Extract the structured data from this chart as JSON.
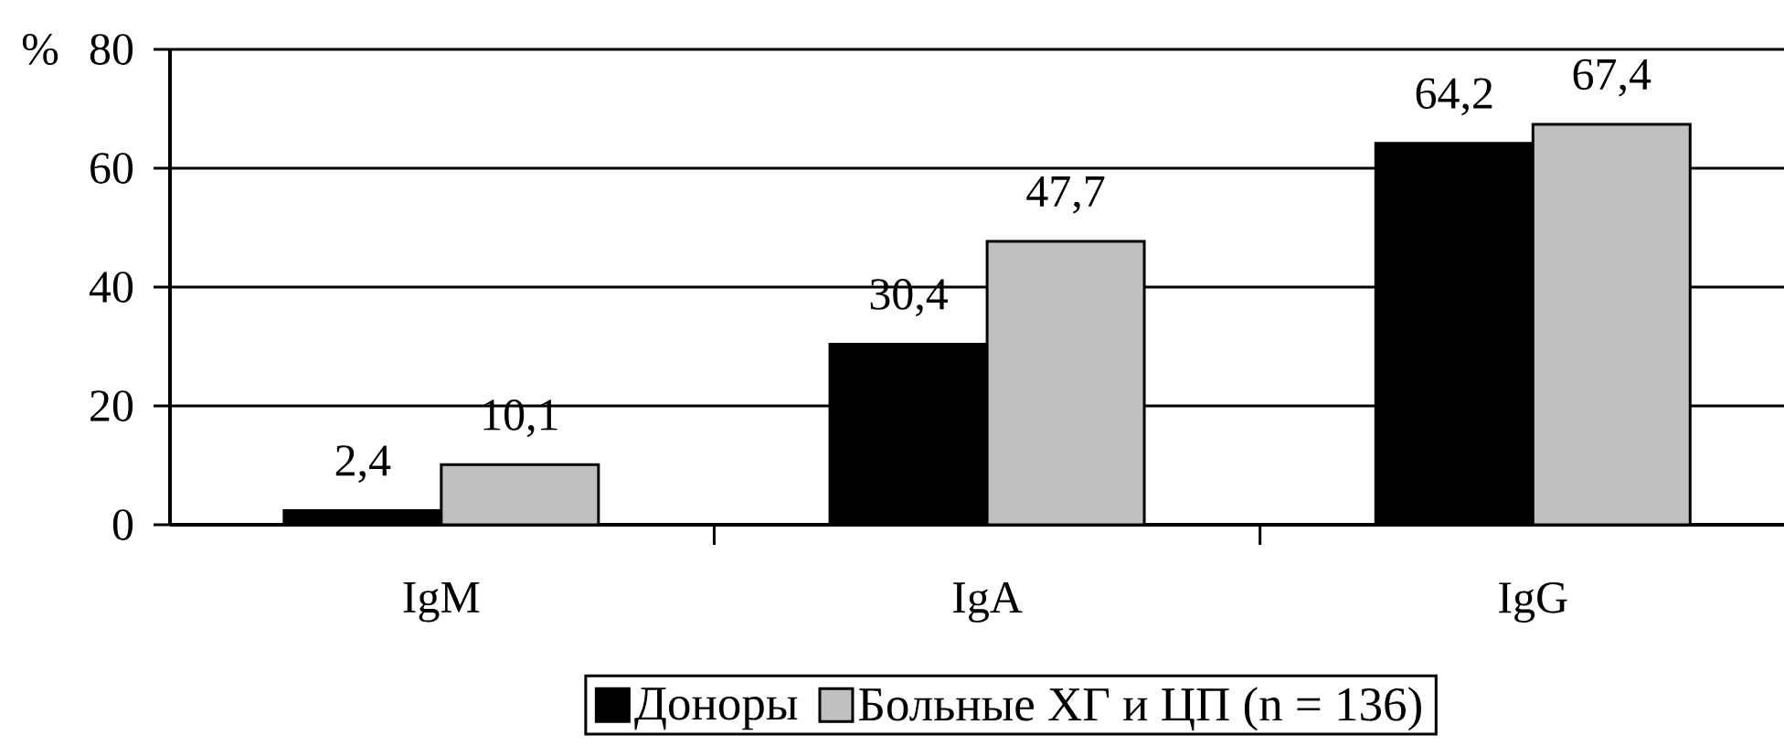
{
  "chart_data": {
    "type": "bar",
    "ylabel": "%",
    "categories": [
      "IgM",
      "IgA",
      "IgG"
    ],
    "series": [
      {
        "name": "Доноры",
        "color": "#000000",
        "values": [
          2.4,
          30.4,
          64.2
        ],
        "value_labels": [
          "2,4",
          "30,4",
          "64,2"
        ]
      },
      {
        "name": "Больные ХГ и ЦП (n = 136)",
        "color": "#c0c0c0",
        "values": [
          10.1,
          47.7,
          67.4
        ],
        "value_labels": [
          "10,1",
          "47,7",
          "67,4"
        ]
      }
    ],
    "ylim": [
      0,
      80
    ],
    "yticks": [
      0,
      20,
      40,
      60,
      80
    ],
    "grid": "y",
    "legend": "bottom"
  }
}
